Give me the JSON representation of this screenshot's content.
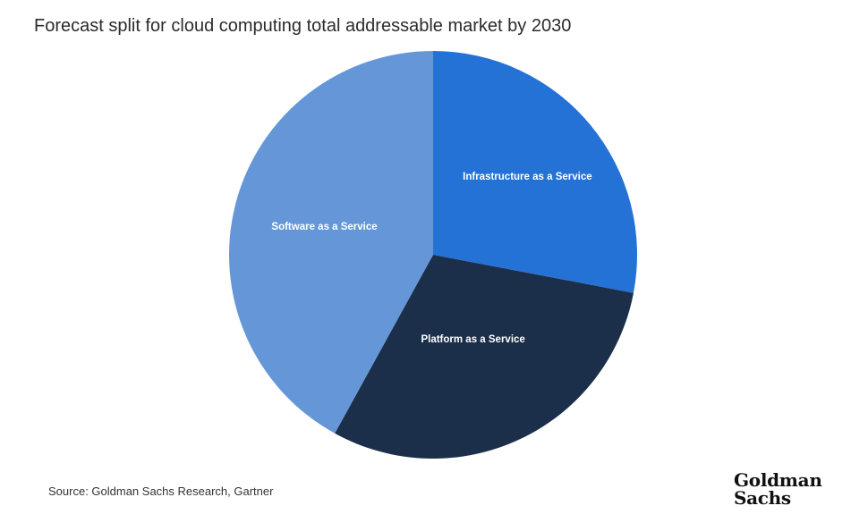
{
  "chart_data": {
    "type": "pie",
    "title": "Forecast split for cloud computing total addressable market by 2030",
    "slices": [
      {
        "label": "Infrastructure as a Service",
        "value": 28,
        "color": "#2472d6"
      },
      {
        "label": "Platform as a Service",
        "value": 30,
        "color": "#1b2f4a"
      },
      {
        "label": "Software as a Service",
        "value": 42,
        "color": "#6597d8"
      }
    ],
    "start_angle_deg": 0,
    "direction": "clockwise"
  },
  "source": "Source: Goldman Sachs Research, Gartner",
  "logo": {
    "line1": "Goldman",
    "line2": "Sachs"
  }
}
